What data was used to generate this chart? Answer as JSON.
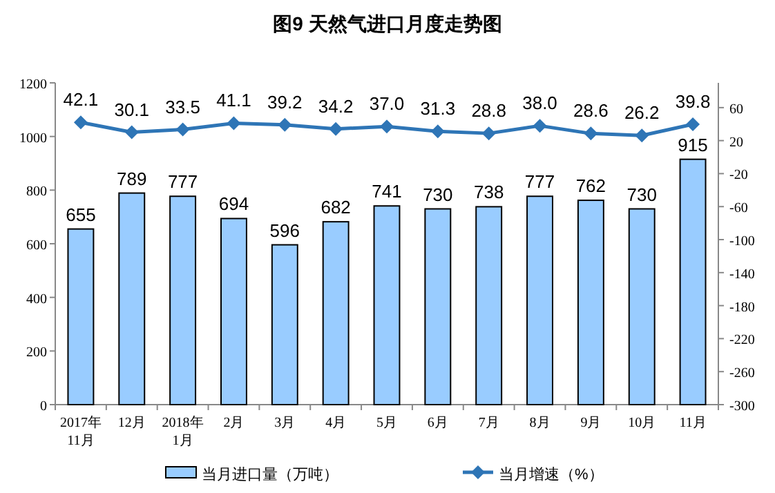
{
  "chart_data": {
    "type": "bar",
    "title": "图9  天然气进口月度走势图",
    "categories": [
      "2017年\n11月",
      "12月",
      "2018年\n1月",
      "2月",
      "3月",
      "4月",
      "5月",
      "6月",
      "7月",
      "8月",
      "9月",
      "10月",
      "11月"
    ],
    "series": [
      {
        "name": "当月进口量（万吨）",
        "color": "#99ccff",
        "values": [
          655,
          789,
          777,
          694,
          596,
          682,
          741,
          730,
          738,
          777,
          762,
          730,
          915
        ]
      },
      {
        "name": "当月增速（%）",
        "type": "line",
        "axis": "y2",
        "color": "#2e75b6",
        "marker": "diamond",
        "values": [
          42.1,
          30.1,
          33.5,
          41.1,
          39.2,
          34.2,
          37.0,
          31.3,
          28.8,
          38.0,
          28.6,
          26.2,
          39.8
        ],
        "value_labels": [
          "42.1",
          "30.1",
          "33.5",
          "41.1",
          "39.2",
          "34.2",
          "37.0",
          "31.3",
          "28.8",
          "38.0",
          "28.6",
          "26.2",
          "39.8"
        ]
      }
    ],
    "data_labels": true,
    "ylim": [
      0,
      1200
    ],
    "yticks": [
      0,
      200,
      400,
      600,
      800,
      1000,
      1200
    ],
    "y2lim": [
      -300,
      90
    ],
    "y2ticks": [
      -300,
      -260,
      -220,
      -180,
      -140,
      -100,
      -60,
      -20,
      20,
      60
    ],
    "legend": "bottom",
    "grid": false
  }
}
